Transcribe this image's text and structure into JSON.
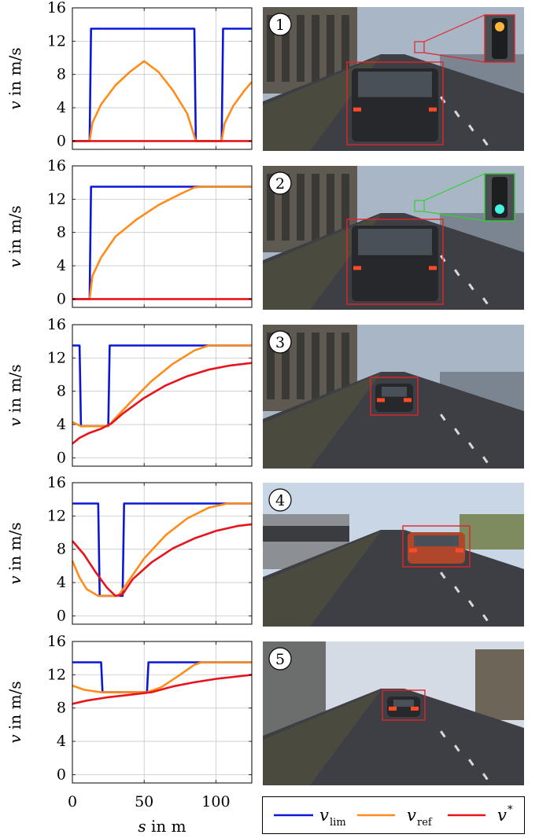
{
  "colors": {
    "v_lim": "#0a18d6",
    "v_ref": "#ff8c1a",
    "v_star": "#e8141b",
    "grid": "#c8c8c8",
    "box_red": "#e0242a",
    "box_green": "#30d030"
  },
  "axes": {
    "ylabel": "v in m/s",
    "xlabel": "s in m",
    "yticks": [
      "0",
      "4",
      "8",
      "12",
      "16"
    ],
    "xticks": [
      "0",
      "50",
      "100"
    ],
    "xlim": [
      0,
      125
    ],
    "ylim": [
      -1,
      16
    ]
  },
  "legend": {
    "items": [
      {
        "label": "v",
        "sub": "lim",
        "color_key": "v_lim"
      },
      {
        "label": "v",
        "sub": "ref",
        "color_key": "v_ref"
      },
      {
        "label": "v",
        "sup": "*",
        "color_key": "v_star"
      }
    ]
  },
  "scenes": [
    {
      "number": "1",
      "light": "red",
      "box": "red"
    },
    {
      "number": "2",
      "light": "green",
      "box": "green"
    },
    {
      "number": "3",
      "light": "none",
      "box": "red"
    },
    {
      "number": "4",
      "light": "none",
      "box": "red"
    },
    {
      "number": "5",
      "light": "none",
      "box": "red"
    }
  ],
  "chart_data": [
    {
      "type": "line",
      "series": [
        {
          "name": "v_lim",
          "points": [
            [
              0,
              0
            ],
            [
              12,
              0
            ],
            [
              13,
              13.5
            ],
            [
              85,
              13.5
            ],
            [
              86,
              0
            ],
            [
              104,
              0
            ],
            [
              105,
              13.5
            ],
            [
              125,
              13.5
            ]
          ]
        },
        {
          "name": "v_ref",
          "points": [
            [
              12,
              0
            ],
            [
              14,
              2.2
            ],
            [
              20,
              4.4
            ],
            [
              30,
              6.7
            ],
            [
              40,
              8.3
            ],
            [
              50,
              9.6
            ],
            [
              60,
              8.3
            ],
            [
              70,
              6.1
            ],
            [
              80,
              3.3
            ],
            [
              86,
              0
            ],
            [
              104,
              0
            ],
            [
              106,
              2.1
            ],
            [
              112,
              4.2
            ],
            [
              120,
              6.1
            ],
            [
              125,
              7.1
            ]
          ]
        },
        {
          "name": "v_star",
          "points": [
            [
              0,
              0
            ],
            [
              125,
              0
            ]
          ]
        }
      ]
    },
    {
      "type": "line",
      "series": [
        {
          "name": "v_lim",
          "points": [
            [
              0,
              0
            ],
            [
              12,
              0
            ],
            [
              13,
              13.5
            ],
            [
              125,
              13.5
            ]
          ]
        },
        {
          "name": "v_ref",
          "points": [
            [
              12,
              0
            ],
            [
              14,
              2.8
            ],
            [
              20,
              5.0
            ],
            [
              30,
              7.5
            ],
            [
              45,
              9.6
            ],
            [
              60,
              11.3
            ],
            [
              75,
              12.6
            ],
            [
              85,
              13.4
            ],
            [
              90,
              13.5
            ],
            [
              125,
              13.5
            ]
          ]
        },
        {
          "name": "v_star",
          "points": [
            [
              0,
              0
            ],
            [
              125,
              0
            ]
          ]
        }
      ]
    },
    {
      "type": "line",
      "series": [
        {
          "name": "v_lim",
          "points": [
            [
              0,
              13.5
            ],
            [
              5,
              13.5
            ],
            [
              6,
              3.8
            ],
            [
              25,
              3.8
            ],
            [
              26,
              13.5
            ],
            [
              125,
              13.5
            ]
          ]
        },
        {
          "name": "v_ref",
          "points": [
            [
              0,
              4.3
            ],
            [
              6,
              3.8
            ],
            [
              25,
              3.8
            ],
            [
              28,
              4.4
            ],
            [
              40,
              6.6
            ],
            [
              55,
              9.2
            ],
            [
              70,
              11.3
            ],
            [
              85,
              12.9
            ],
            [
              95,
              13.5
            ],
            [
              125,
              13.5
            ]
          ]
        },
        {
          "name": "v_star",
          "points": [
            [
              0,
              1.7
            ],
            [
              5,
              2.4
            ],
            [
              12,
              3.0
            ],
            [
              20,
              3.5
            ],
            [
              27,
              4.1
            ],
            [
              35,
              5.3
            ],
            [
              50,
              7.2
            ],
            [
              65,
              8.7
            ],
            [
              80,
              9.8
            ],
            [
              95,
              10.6
            ],
            [
              110,
              11.1
            ],
            [
              125,
              11.4
            ]
          ]
        }
      ]
    },
    {
      "type": "line",
      "series": [
        {
          "name": "v_lim",
          "points": [
            [
              0,
              13.5
            ],
            [
              18,
              13.5
            ],
            [
              19,
              2.4
            ],
            [
              35,
              2.4
            ],
            [
              36,
              13.5
            ],
            [
              125,
              13.5
            ]
          ]
        },
        {
          "name": "v_ref",
          "points": [
            [
              0,
              6.6
            ],
            [
              5,
              4.6
            ],
            [
              10,
              3.2
            ],
            [
              18,
              2.4
            ],
            [
              32,
              2.4
            ],
            [
              38,
              3.9
            ],
            [
              50,
              6.9
            ],
            [
              65,
              9.7
            ],
            [
              80,
              11.7
            ],
            [
              95,
              13.0
            ],
            [
              108,
              13.5
            ],
            [
              125,
              13.5
            ]
          ]
        },
        {
          "name": "v_star",
          "points": [
            [
              0,
              9.0
            ],
            [
              8,
              7.4
            ],
            [
              16,
              5.3
            ],
            [
              24,
              3.4
            ],
            [
              30,
              2.4
            ],
            [
              35,
              2.6
            ],
            [
              42,
              4.4
            ],
            [
              55,
              6.4
            ],
            [
              70,
              8.1
            ],
            [
              85,
              9.3
            ],
            [
              100,
              10.2
            ],
            [
              115,
              10.8
            ],
            [
              125,
              11.0
            ]
          ]
        }
      ]
    },
    {
      "type": "line",
      "series": [
        {
          "name": "v_lim",
          "points": [
            [
              0,
              13.5
            ],
            [
              20,
              13.5
            ],
            [
              21,
              9.9
            ],
            [
              52,
              9.9
            ],
            [
              53,
              13.5
            ],
            [
              125,
              13.5
            ]
          ]
        },
        {
          "name": "v_ref",
          "points": [
            [
              0,
              10.7
            ],
            [
              8,
              10.2
            ],
            [
              20,
              9.9
            ],
            [
              52,
              9.9
            ],
            [
              62,
              10.5
            ],
            [
              75,
              12.0
            ],
            [
              85,
              13.2
            ],
            [
              90,
              13.5
            ],
            [
              125,
              13.5
            ]
          ]
        },
        {
          "name": "v_star",
          "points": [
            [
              0,
              8.5
            ],
            [
              10,
              8.9
            ],
            [
              25,
              9.3
            ],
            [
              40,
              9.6
            ],
            [
              55,
              9.9
            ],
            [
              70,
              10.6
            ],
            [
              85,
              11.1
            ],
            [
              100,
              11.5
            ],
            [
              115,
              11.8
            ],
            [
              125,
              12.0
            ]
          ]
        }
      ]
    }
  ]
}
